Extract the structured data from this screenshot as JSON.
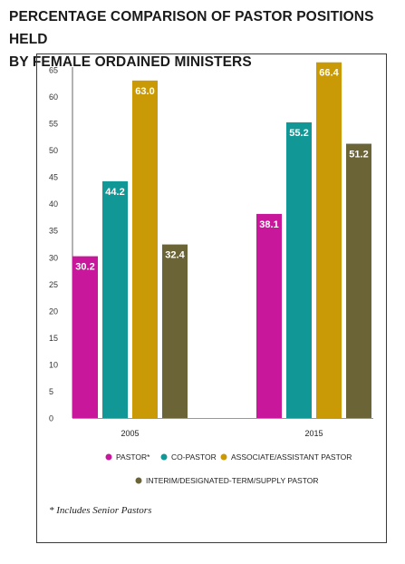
{
  "title_line1": "PERCENTAGE COMPARISON OF PASTOR POSITIONS HELD",
  "title_line2": "BY FEMALE ORDAINED MINISTERS",
  "footnote": "* Includes Senior Pastors",
  "chart_data": {
    "type": "bar",
    "categories": [
      "2005",
      "2015"
    ],
    "series": [
      {
        "name": "PASTOR*",
        "color": "#c8179b",
        "values": [
          30.2,
          38.1
        ]
      },
      {
        "name": "CO-PASTOR",
        "color": "#119896",
        "values": [
          44.2,
          55.2
        ]
      },
      {
        "name": "ASSOCIATE/ASSISTANT PASTOR",
        "color": "#c99a06",
        "values": [
          63.0,
          66.4
        ]
      },
      {
        "name": "INTERIM/DESIGNATED-TERM/SUPPLY PASTOR",
        "color": "#6b6437",
        "values": [
          32.4,
          51.2
        ]
      }
    ],
    "data_labels": [
      [
        "30.2",
        "38.1"
      ],
      [
        "44.2",
        "55.2"
      ],
      [
        "63.0",
        "66.4"
      ],
      [
        "32.4",
        "51.2"
      ]
    ],
    "y_ticks": [
      0,
      5,
      10,
      15,
      20,
      25,
      30,
      35,
      40,
      45,
      50,
      55,
      60,
      65
    ],
    "ylim": [
      0,
      65
    ],
    "grid": false,
    "legend_position": "bottom"
  }
}
